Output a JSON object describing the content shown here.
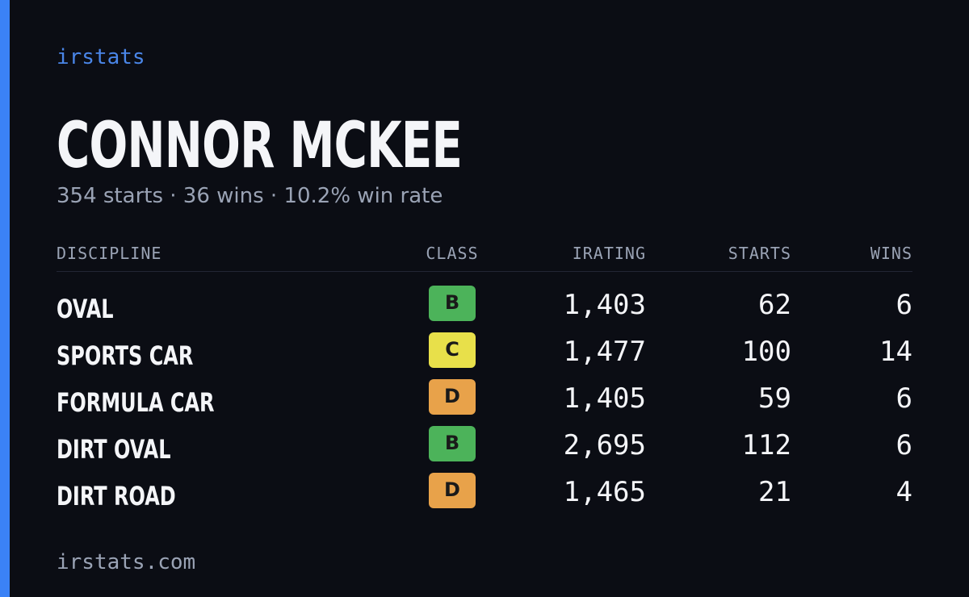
{
  "brand": "irstats",
  "title": "CONNOR MCKEE",
  "subtitle": "354 starts · 36 wins · 10.2% win rate",
  "table": {
    "headers": [
      "DISCIPLINE",
      "CLASS",
      "IRATING",
      "STARTS",
      "WINS"
    ],
    "rows": [
      {
        "discipline": "OVAL",
        "class": "B",
        "class_color": "#4cb35a",
        "irating": "1,403",
        "starts": "62",
        "wins": "6"
      },
      {
        "discipline": "SPORTS CAR",
        "class": "C",
        "class_color": "#e8e04a",
        "irating": "1,477",
        "starts": "100",
        "wins": "14"
      },
      {
        "discipline": "FORMULA CAR",
        "class": "D",
        "class_color": "#e8a24a",
        "irating": "1,405",
        "starts": "59",
        "wins": "6"
      },
      {
        "discipline": "DIRT OVAL",
        "class": "B",
        "class_color": "#4cb35a",
        "irating": "2,695",
        "starts": "112",
        "wins": "6"
      },
      {
        "discipline": "DIRT ROAD",
        "class": "D",
        "class_color": "#e8a24a",
        "irating": "1,465",
        "starts": "21",
        "wins": "4"
      }
    ]
  },
  "footer": "irstats.com"
}
